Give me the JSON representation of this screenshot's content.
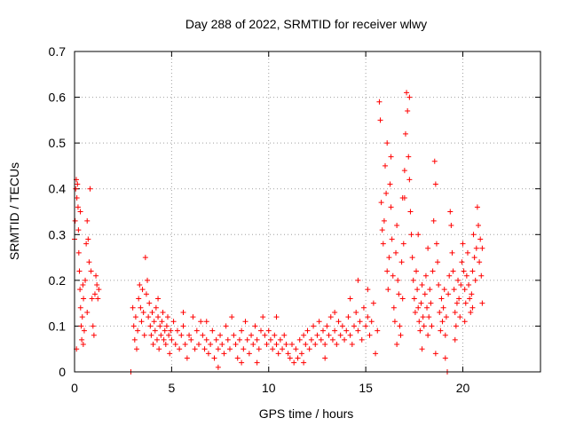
{
  "chart_data": {
    "type": "scatter",
    "title": "Day 288 of 2022, SRMTID for receiver wlwy",
    "xlabel": "GPS time / hours",
    "ylabel": "SRMTID / TECUs",
    "xlim": [
      0,
      24
    ],
    "ylim": [
      0,
      0.7
    ],
    "xticks": [
      0,
      5,
      10,
      15,
      20
    ],
    "yticks": [
      0,
      0.1,
      0.2,
      0.3,
      0.4,
      0.5,
      0.6,
      0.7
    ],
    "xtick_labels": [
      "0",
      "5",
      "10",
      "15",
      "20"
    ],
    "ytick_labels": [
      "0",
      "0.1",
      "0.2",
      "0.3",
      "0.4",
      "0.5",
      "0.6",
      "0.7"
    ],
    "grid": true,
    "marker": "+",
    "color": "#ff0000",
    "series": [
      {
        "name": "SRMTID",
        "points": [
          [
            0.0,
            0.29
          ],
          [
            0.03,
            0.33
          ],
          [
            0.06,
            0.4
          ],
          [
            0.09,
            0.42
          ],
          [
            0.12,
            0.38
          ],
          [
            0.15,
            0.41
          ],
          [
            0.18,
            0.36
          ],
          [
            0.2,
            0.31
          ],
          [
            0.22,
            0.26
          ],
          [
            0.25,
            0.22
          ],
          [
            0.28,
            0.18
          ],
          [
            0.31,
            0.14
          ],
          [
            0.34,
            0.1
          ],
          [
            0.37,
            0.07
          ],
          [
            0.4,
            0.12
          ],
          [
            0.43,
            0.19
          ],
          [
            0.46,
            0.16
          ],
          [
            0.5,
            0.09
          ],
          [
            0.55,
            0.2
          ],
          [
            0.6,
            0.28
          ],
          [
            0.65,
            0.33
          ],
          [
            0.7,
            0.29
          ],
          [
            0.75,
            0.24
          ],
          [
            0.8,
            0.4
          ],
          [
            0.85,
            0.22
          ],
          [
            0.9,
            0.16
          ],
          [
            0.95,
            0.1
          ],
          [
            1.0,
            0.08
          ],
          [
            1.05,
            0.17
          ],
          [
            1.1,
            0.21
          ],
          [
            1.15,
            0.19
          ],
          [
            1.2,
            0.16
          ],
          [
            1.25,
            0.18
          ],
          [
            0.1,
            0.05
          ],
          [
            0.3,
            0.35
          ],
          [
            0.45,
            0.06
          ],
          [
            0.65,
            0.13
          ],
          [
            2.9,
            0.0
          ],
          [
            3.0,
            0.14
          ],
          [
            3.05,
            0.1
          ],
          [
            3.1,
            0.07
          ],
          [
            3.15,
            0.12
          ],
          [
            3.2,
            0.05
          ],
          [
            3.25,
            0.09
          ],
          [
            3.3,
            0.16
          ],
          [
            3.35,
            0.19
          ],
          [
            3.4,
            0.14
          ],
          [
            3.45,
            0.11
          ],
          [
            3.5,
            0.18
          ],
          [
            3.55,
            0.13
          ],
          [
            3.6,
            0.08
          ],
          [
            3.65,
            0.25
          ],
          [
            3.7,
            0.17
          ],
          [
            3.75,
            0.2
          ],
          [
            3.8,
            0.12
          ],
          [
            3.85,
            0.15
          ],
          [
            3.9,
            0.1
          ],
          [
            3.95,
            0.08
          ],
          [
            4.0,
            0.13
          ],
          [
            4.05,
            0.06
          ],
          [
            4.1,
            0.11
          ],
          [
            4.15,
            0.09
          ],
          [
            4.2,
            0.14
          ],
          [
            4.25,
            0.07
          ],
          [
            4.3,
            0.12
          ],
          [
            4.35,
            0.05
          ],
          [
            4.4,
            0.1
          ],
          [
            4.45,
            0.08
          ],
          [
            4.5,
            0.11
          ],
          [
            4.55,
            0.13
          ],
          [
            4.6,
            0.07
          ],
          [
            4.65,
            0.09
          ],
          [
            4.7,
            0.06
          ],
          [
            4.75,
            0.1
          ],
          [
            4.8,
            0.12
          ],
          [
            4.85,
            0.08
          ],
          [
            4.9,
            0.04
          ],
          [
            4.95,
            0.09
          ],
          [
            5.0,
            0.07
          ],
          [
            5.1,
            0.11
          ],
          [
            5.2,
            0.06
          ],
          [
            5.3,
            0.09
          ],
          [
            5.4,
            0.05
          ],
          [
            5.5,
            0.08
          ],
          [
            5.6,
            0.1
          ],
          [
            5.7,
            0.06
          ],
          [
            5.8,
            0.03
          ],
          [
            5.9,
            0.08
          ],
          [
            6.0,
            0.07
          ],
          [
            6.1,
            0.12
          ],
          [
            6.2,
            0.05
          ],
          [
            6.3,
            0.09
          ],
          [
            6.4,
            0.06
          ],
          [
            6.5,
            0.11
          ],
          [
            6.6,
            0.08
          ],
          [
            6.7,
            0.05
          ],
          [
            6.8,
            0.07
          ],
          [
            6.9,
            0.04
          ],
          [
            7.0,
            0.06
          ],
          [
            7.1,
            0.09
          ],
          [
            7.2,
            0.03
          ],
          [
            7.3,
            0.07
          ],
          [
            7.4,
            0.05
          ],
          [
            7.5,
            0.08
          ],
          [
            7.6,
            0.06
          ],
          [
            7.7,
            0.04
          ],
          [
            7.8,
            0.1
          ],
          [
            7.9,
            0.07
          ],
          [
            8.0,
            0.05
          ],
          [
            8.1,
            0.12
          ],
          [
            8.2,
            0.08
          ],
          [
            8.3,
            0.06
          ],
          [
            8.4,
            0.03
          ],
          [
            8.5,
            0.07
          ],
          [
            8.6,
            0.09
          ],
          [
            8.7,
            0.05
          ],
          [
            8.8,
            0.11
          ],
          [
            8.9,
            0.07
          ],
          [
            9.0,
            0.04
          ],
          [
            9.1,
            0.08
          ],
          [
            9.2,
            0.06
          ],
          [
            9.3,
            0.1
          ],
          [
            9.4,
            0.07
          ],
          [
            9.5,
            0.05
          ],
          [
            9.6,
            0.09
          ],
          [
            9.7,
            0.12
          ],
          [
            9.8,
            0.08
          ],
          [
            9.9,
            0.06
          ],
          [
            10.0,
            0.09
          ],
          [
            10.1,
            0.07
          ],
          [
            10.2,
            0.05
          ],
          [
            10.3,
            0.08
          ],
          [
            10.4,
            0.06
          ],
          [
            10.5,
            0.04
          ],
          [
            10.6,
            0.07
          ],
          [
            10.7,
            0.05
          ],
          [
            10.8,
            0.08
          ],
          [
            10.9,
            0.06
          ],
          [
            11.0,
            0.04
          ],
          [
            11.1,
            0.03
          ],
          [
            11.2,
            0.06
          ],
          [
            11.3,
            0.02
          ],
          [
            11.4,
            0.05
          ],
          [
            11.5,
            0.03
          ],
          [
            11.6,
            0.07
          ],
          [
            11.7,
            0.04
          ],
          [
            11.8,
            0.02
          ],
          [
            11.9,
            0.06
          ],
          [
            12.0,
            0.09
          ],
          [
            12.1,
            0.05
          ],
          [
            12.2,
            0.07
          ],
          [
            12.3,
            0.1
          ],
          [
            12.4,
            0.06
          ],
          [
            12.5,
            0.08
          ],
          [
            12.6,
            0.11
          ],
          [
            12.7,
            0.07
          ],
          [
            12.8,
            0.09
          ],
          [
            12.9,
            0.06
          ],
          [
            13.0,
            0.1
          ],
          [
            13.1,
            0.08
          ],
          [
            13.2,
            0.12
          ],
          [
            13.3,
            0.07
          ],
          [
            13.4,
            0.09
          ],
          [
            13.5,
            0.06
          ],
          [
            13.6,
            0.11
          ],
          [
            13.7,
            0.08
          ],
          [
            13.8,
            0.1
          ],
          [
            13.9,
            0.07
          ],
          [
            14.0,
            0.09
          ],
          [
            14.1,
            0.12
          ],
          [
            14.2,
            0.08
          ],
          [
            14.3,
            0.06
          ],
          [
            14.4,
            0.1
          ],
          [
            14.5,
            0.13
          ],
          [
            14.6,
            0.09
          ],
          [
            14.7,
            0.11
          ],
          [
            14.8,
            0.07
          ],
          [
            14.9,
            0.14
          ],
          [
            15.0,
            0.1
          ],
          [
            15.1,
            0.12
          ],
          [
            15.2,
            0.08
          ],
          [
            15.3,
            0.11
          ],
          [
            15.4,
            0.15
          ],
          [
            15.5,
            0.04
          ],
          [
            15.6,
            0.09
          ],
          [
            4.3,
            0.16
          ],
          [
            6.8,
            0.11
          ],
          [
            8.6,
            0.02
          ],
          [
            10.4,
            0.12
          ],
          [
            11.8,
            0.08
          ],
          [
            13.4,
            0.13
          ],
          [
            14.2,
            0.16
          ],
          [
            14.6,
            0.2
          ],
          [
            15.1,
            0.18
          ],
          [
            12.9,
            0.03
          ],
          [
            9.4,
            0.02
          ],
          [
            5.6,
            0.13
          ],
          [
            7.4,
            0.01
          ],
          [
            15.7,
            0.59
          ],
          [
            15.75,
            0.55
          ],
          [
            15.8,
            0.37
          ],
          [
            15.85,
            0.31
          ],
          [
            15.9,
            0.28
          ],
          [
            15.95,
            0.33
          ],
          [
            16.0,
            0.45
          ],
          [
            16.05,
            0.39
          ],
          [
            16.1,
            0.22
          ],
          [
            16.15,
            0.18
          ],
          [
            16.2,
            0.25
          ],
          [
            16.25,
            0.41
          ],
          [
            16.3,
            0.36
          ],
          [
            16.35,
            0.29
          ],
          [
            16.4,
            0.21
          ],
          [
            16.45,
            0.14
          ],
          [
            16.5,
            0.11
          ],
          [
            16.55,
            0.26
          ],
          [
            16.6,
            0.32
          ],
          [
            16.65,
            0.2
          ],
          [
            16.7,
            0.17
          ],
          [
            16.75,
            0.1
          ],
          [
            16.8,
            0.08
          ],
          [
            16.85,
            0.24
          ],
          [
            16.9,
            0.38
          ],
          [
            16.95,
            0.28
          ],
          [
            17.0,
            0.44
          ],
          [
            17.05,
            0.52
          ],
          [
            17.1,
            0.61
          ],
          [
            17.15,
            0.57
          ],
          [
            17.2,
            0.47
          ],
          [
            17.25,
            0.42
          ],
          [
            17.3,
            0.35
          ],
          [
            17.35,
            0.3
          ],
          [
            17.4,
            0.25
          ],
          [
            17.45,
            0.2
          ],
          [
            17.5,
            0.16
          ],
          [
            17.55,
            0.13
          ],
          [
            17.6,
            0.22
          ],
          [
            17.65,
            0.18
          ],
          [
            17.7,
            0.14
          ],
          [
            17.75,
            0.11
          ],
          [
            17.8,
            0.09
          ],
          [
            17.85,
            0.15
          ],
          [
            17.9,
            0.19
          ],
          [
            17.95,
            0.12
          ],
          [
            18.0,
            0.1
          ],
          [
            18.05,
            0.17
          ],
          [
            18.1,
            0.21
          ],
          [
            18.15,
            0.14
          ],
          [
            18.2,
            0.08
          ],
          [
            18.25,
            0.12
          ],
          [
            18.3,
            0.18
          ],
          [
            18.35,
            0.15
          ],
          [
            18.4,
            0.1
          ],
          [
            18.45,
            0.22
          ],
          [
            18.5,
            0.33
          ],
          [
            18.55,
            0.46
          ],
          [
            18.6,
            0.41
          ],
          [
            18.65,
            0.28
          ],
          [
            18.7,
            0.24
          ],
          [
            18.75,
            0.19
          ],
          [
            18.8,
            0.13
          ],
          [
            18.85,
            0.09
          ],
          [
            18.9,
            0.16
          ],
          [
            18.95,
            0.11
          ],
          [
            19.0,
            0.14
          ],
          [
            19.05,
            0.18
          ],
          [
            19.1,
            0.08
          ],
          [
            19.15,
            0.12
          ],
          [
            19.2,
            0.0
          ],
          [
            19.25,
            0.17
          ],
          [
            19.3,
            0.21
          ],
          [
            19.35,
            0.35
          ],
          [
            19.4,
            0.32
          ],
          [
            19.45,
            0.26
          ],
          [
            19.5,
            0.22
          ],
          [
            19.55,
            0.18
          ],
          [
            19.6,
            0.13
          ],
          [
            19.65,
            0.1
          ],
          [
            19.7,
            0.15
          ],
          [
            19.75,
            0.2
          ],
          [
            19.8,
            0.16
          ],
          [
            19.85,
            0.12
          ],
          [
            19.9,
            0.19
          ],
          [
            19.95,
            0.24
          ],
          [
            20.0,
            0.28
          ],
          [
            20.05,
            0.22
          ],
          [
            20.1,
            0.18
          ],
          [
            20.15,
            0.15
          ],
          [
            20.2,
            0.21
          ],
          [
            20.25,
            0.26
          ],
          [
            20.3,
            0.19
          ],
          [
            20.35,
            0.16
          ],
          [
            20.4,
            0.13
          ],
          [
            20.45,
            0.17
          ],
          [
            20.5,
            0.22
          ],
          [
            20.55,
            0.3
          ],
          [
            20.6,
            0.25
          ],
          [
            20.65,
            0.2
          ],
          [
            20.7,
            0.27
          ],
          [
            20.75,
            0.36
          ],
          [
            20.8,
            0.32
          ],
          [
            20.85,
            0.24
          ],
          [
            20.9,
            0.29
          ],
          [
            20.95,
            0.21
          ],
          [
            21.0,
            0.15
          ],
          [
            16.1,
            0.5
          ],
          [
            16.3,
            0.47
          ],
          [
            17.0,
            0.38
          ],
          [
            17.25,
            0.6
          ],
          [
            16.6,
            0.06
          ],
          [
            17.9,
            0.05
          ],
          [
            18.6,
            0.04
          ],
          [
            19.1,
            0.03
          ],
          [
            19.6,
            0.07
          ],
          [
            20.1,
            0.11
          ],
          [
            20.5,
            0.14
          ],
          [
            21.0,
            0.27
          ],
          [
            18.2,
            0.27
          ],
          [
            17.7,
            0.3
          ],
          [
            16.9,
            0.16
          ]
        ]
      }
    ]
  }
}
